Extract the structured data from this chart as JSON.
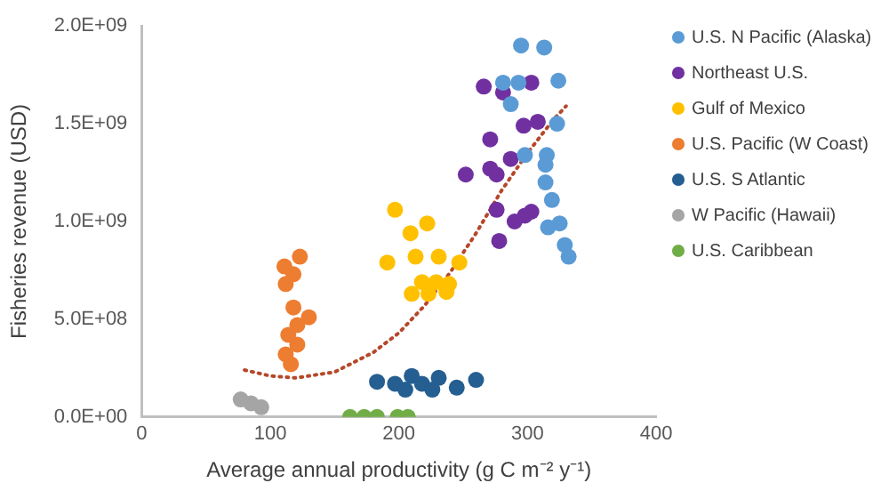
{
  "chart_data": {
    "type": "scatter",
    "xlabel": "Average annual productivity (g C m⁻² y⁻¹)",
    "ylabel": "Fisheries revenue (USD)",
    "xlim": [
      0,
      400
    ],
    "xticks": [
      0,
      100,
      200,
      300,
      400
    ],
    "ylim": [
      0,
      2000000000
    ],
    "yticks": [
      {
        "value": 0,
        "label": "0.0E+00"
      },
      {
        "value": 500000000,
        "label": "5.0E+08"
      },
      {
        "value": 1000000000,
        "label": "1.0E+09"
      },
      {
        "value": 1500000000,
        "label": "1.5E+09"
      },
      {
        "value": 2000000000,
        "label": "2.0E+09"
      }
    ],
    "grid": false,
    "legend": "right",
    "marker": "circle",
    "series": [
      {
        "name": "U.S. N Pacific (Alaska)",
        "color": "#5b9bd5",
        "x": [
          295,
          313,
          281,
          293,
          324,
          287,
          323,
          298,
          315,
          314,
          314,
          319,
          325,
          316,
          329,
          332
        ],
        "values": [
          1900000000,
          1890000000,
          1710000000,
          1710000000,
          1720000000,
          1600000000,
          1500000000,
          1340000000,
          1340000000,
          1290000000,
          1200000000,
          1110000000,
          990000000,
          970000000,
          880000000,
          820000000
        ]
      },
      {
        "name": "Northeast U.S.",
        "color": "#7030a0",
        "x": [
          266,
          281,
          286,
          303,
          271,
          297,
          308,
          287,
          271,
          276,
          252,
          276,
          303,
          298,
          290,
          278
        ],
        "values": [
          1690000000,
          1660000000,
          null,
          1710000000,
          1420000000,
          1490000000,
          1510000000,
          1320000000,
          1270000000,
          1240000000,
          1240000000,
          1060000000,
          1050000000,
          1030000000,
          1000000000,
          900000000
        ]
      },
      {
        "name": "Gulf of Mexico",
        "color": "#ffc000",
        "x": [
          197,
          209,
          222,
          191,
          213,
          231,
          247,
          218,
          229,
          210,
          223,
          237,
          239
        ],
        "values": [
          1060000000,
          940000000,
          990000000,
          790000000,
          820000000,
          820000000,
          790000000,
          690000000,
          690000000,
          630000000,
          630000000,
          640000000,
          680000000
        ]
      },
      {
        "name": "U.S. Pacific (W Coast)",
        "color": "#ed7d31",
        "x": [
          111,
          123,
          118,
          112,
          118,
          130,
          121,
          114,
          121,
          112,
          116
        ],
        "values": [
          770000000,
          820000000,
          730000000,
          680000000,
          560000000,
          510000000,
          470000000,
          420000000,
          370000000,
          320000000,
          270000000
        ]
      },
      {
        "name": "U.S. S Atlantic",
        "color": "#255e91",
        "x": [
          183,
          197,
          210,
          218,
          231,
          226,
          245,
          260,
          205
        ],
        "values": [
          180000000,
          170000000,
          210000000,
          170000000,
          200000000,
          140000000,
          150000000,
          190000000,
          140000000
        ]
      },
      {
        "name": "W Pacific (Hawaii)",
        "color": "#a5a5a5",
        "x": [
          77,
          85,
          93
        ],
        "values": [
          90000000,
          70000000,
          50000000
        ]
      },
      {
        "name": "U.S. Caribbean",
        "color": "#70ad47",
        "x": [
          162,
          173,
          183,
          199,
          207
        ],
        "values": [
          0,
          0,
          0,
          0,
          0
        ]
      },
      {
        "type": "line",
        "marker": "none",
        "line_style": "dotted",
        "color": "#b5482a",
        "x": [
          80,
          100,
          120,
          150,
          180,
          200,
          220,
          240,
          260,
          280,
          300,
          320,
          330
        ],
        "values": [
          240000000,
          210000000,
          200000000,
          230000000,
          330000000,
          430000000,
          570000000,
          740000000,
          940000000,
          1160000000,
          1350000000,
          1520000000,
          1590000000
        ]
      }
    ]
  }
}
